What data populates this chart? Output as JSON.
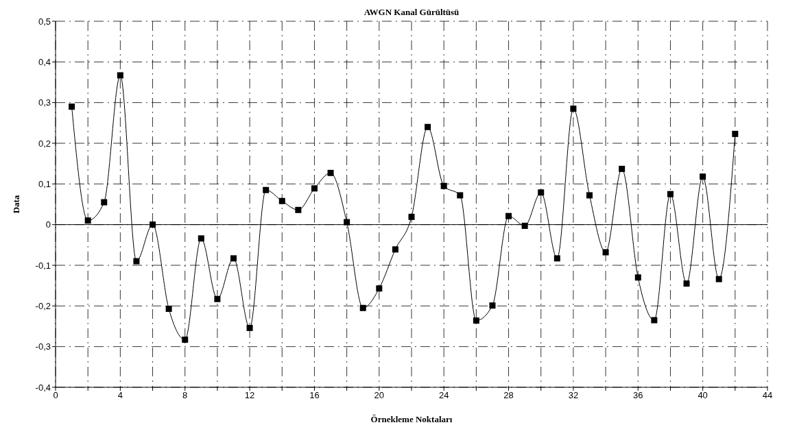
{
  "chart_data": {
    "type": "line",
    "title": "AWGN Kanal Gürültüsü",
    "xlabel": "Örnekleme Noktaları",
    "ylabel": "Data",
    "x": [
      1,
      2,
      3,
      4,
      5,
      6,
      7,
      8,
      9,
      10,
      11,
      12,
      13,
      14,
      15,
      16,
      17,
      18,
      19,
      20,
      21,
      22,
      23,
      24,
      25,
      26,
      27,
      28,
      29,
      30,
      31,
      32,
      33,
      34,
      35,
      36,
      37,
      38,
      39,
      40,
      41,
      42
    ],
    "series": [
      {
        "color": "#000000",
        "values": [
          0.29,
          0.01,
          0.055,
          0.367,
          -0.09,
          0.0,
          -0.207,
          -0.283,
          -0.034,
          -0.183,
          -0.083,
          -0.254,
          0.085,
          0.058,
          0.036,
          0.089,
          0.127,
          0.006,
          -0.205,
          -0.157,
          -0.061,
          0.019,
          0.24,
          0.095,
          0.072,
          -0.236,
          -0.199,
          0.021,
          -0.003,
          0.079,
          -0.083,
          0.285,
          0.072,
          -0.068,
          0.137,
          -0.13,
          -0.235,
          0.075,
          -0.145,
          0.118,
          -0.134,
          0.223
        ]
      }
    ],
    "xlim": [
      0,
      44
    ],
    "xticks": [
      0,
      {
        "value": 2,
        "label": null
      },
      4,
      {
        "value": 6,
        "label": null
      },
      8,
      {
        "value": 10,
        "label": null
      },
      12,
      {
        "value": 14,
        "label": null
      },
      16,
      {
        "value": 18,
        "label": null
      },
      20,
      {
        "value": 22,
        "label": null
      },
      24,
      {
        "value": 26,
        "label": null
      },
      28,
      {
        "value": 30,
        "label": null
      },
      32,
      {
        "value": 34,
        "label": null
      },
      36,
      {
        "value": 38,
        "label": null
      },
      40,
      {
        "value": 42,
        "label": null
      },
      44
    ],
    "ylim": [
      -0.4,
      0.5
    ],
    "yticks": [
      {
        "value": -0.4,
        "label": "-0,4"
      },
      {
        "value": -0.3,
        "label": "-0,3"
      },
      {
        "value": -0.2,
        "label": "-0,2"
      },
      {
        "value": -0.1,
        "label": "-0,1"
      },
      0,
      {
        "value": 0.1,
        "label": "0,1"
      },
      {
        "value": 0.2,
        "label": "0,2"
      },
      {
        "value": 0.3,
        "label": "0,3"
      },
      {
        "value": 0.4,
        "label": "0,4"
      },
      {
        "value": 0.5,
        "label": "0,5"
      }
    ],
    "ref_lines": [
      {
        "axis": "y",
        "value": 0,
        "color": "#000000",
        "line_style": "solid"
      }
    ],
    "grid": true,
    "marker": "square",
    "line_style": "solid"
  }
}
